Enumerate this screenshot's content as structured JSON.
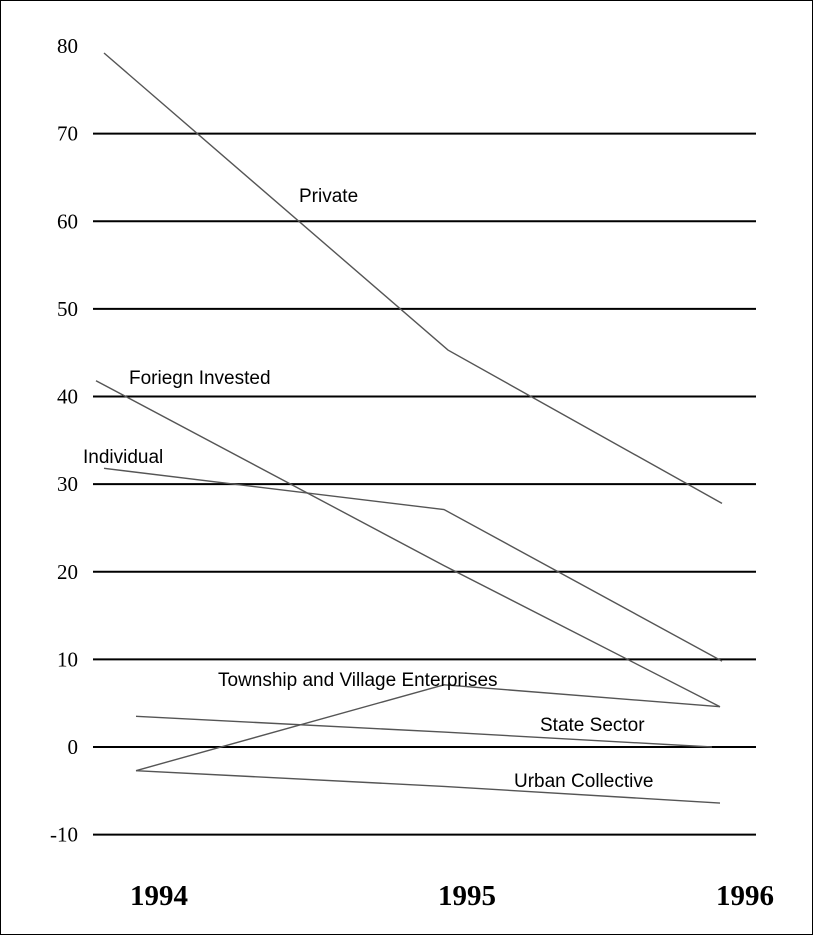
{
  "chart_data": {
    "type": "line",
    "title": "",
    "xlabel": "",
    "ylabel": "",
    "x": [
      "1994",
      "1995",
      "1996"
    ],
    "ylim": [
      -10,
      80
    ],
    "yticks": [
      80,
      70,
      60,
      50,
      40,
      30,
      20,
      10,
      0,
      -10
    ],
    "grid": true,
    "series": [
      {
        "name": "Private",
        "values": [
          79.2,
          45.3,
          27.8
        ]
      },
      {
        "name": "Foriegn Invested",
        "values": [
          41.8,
          20.7,
          4.6
        ]
      },
      {
        "name": "Individual",
        "values": [
          31.8,
          27.1,
          9.8
        ]
      },
      {
        "name": "Township and Village Enterprises",
        "values": [
          -2.7,
          7.1,
          4.6
        ]
      },
      {
        "name": "State Sector",
        "values": [
          3.5,
          1.7,
          0.0
        ]
      },
      {
        "name": "Urban Collective",
        "values": [
          -2.7,
          -4.5,
          -6.4
        ]
      }
    ]
  }
}
